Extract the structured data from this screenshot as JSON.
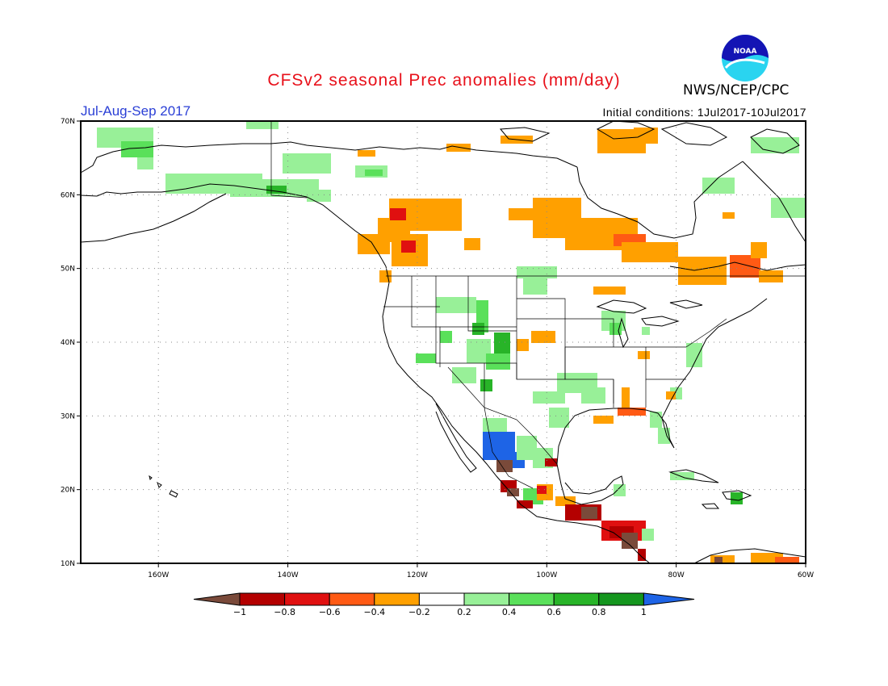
{
  "header": {
    "title": "CFSv2 seasonal Prec anomalies (mm/day)",
    "season": "Jul-Aug-Sep 2017",
    "initial_conditions": "Initial conditions: 1Jul2017-10Jul2017",
    "agency": "NWS/NCEP/CPC",
    "logo_text": "NOAA"
  },
  "map": {
    "lon_range": [
      -172,
      -60
    ],
    "lat_range": [
      10,
      70
    ],
    "x_ticks": [
      "160W",
      "140W",
      "120W",
      "100W",
      "80W",
      "60W"
    ],
    "y_ticks": [
      "70N",
      "60N",
      "50N",
      "40N",
      "30N",
      "20N",
      "10N"
    ]
  },
  "colorbar": {
    "labels": [
      "-1",
      "-0.8",
      "-0.6",
      "-0.4",
      "-0.2",
      "0.2",
      "0.4",
      "0.6",
      "0.8",
      "1"
    ],
    "colors": [
      "#7a4a3a",
      "#b40000",
      "#e01010",
      "#ff5a14",
      "#ffa000",
      "#ffffff",
      "#98f098",
      "#5ae05a",
      "#28b428",
      "#14961e",
      "#1e64e6"
    ]
  },
  "colors": {
    "title": "#e8101a",
    "season": "#2a3fd6",
    "light_green": "#98f098",
    "green": "#5ae05a",
    "dark_green": "#28b428",
    "orange": "#ffa000",
    "red_orange": "#ff5a14",
    "red": "#e01010",
    "dark_red": "#b40000",
    "brown": "#7a4a3a",
    "blue": "#1e64e6"
  }
}
